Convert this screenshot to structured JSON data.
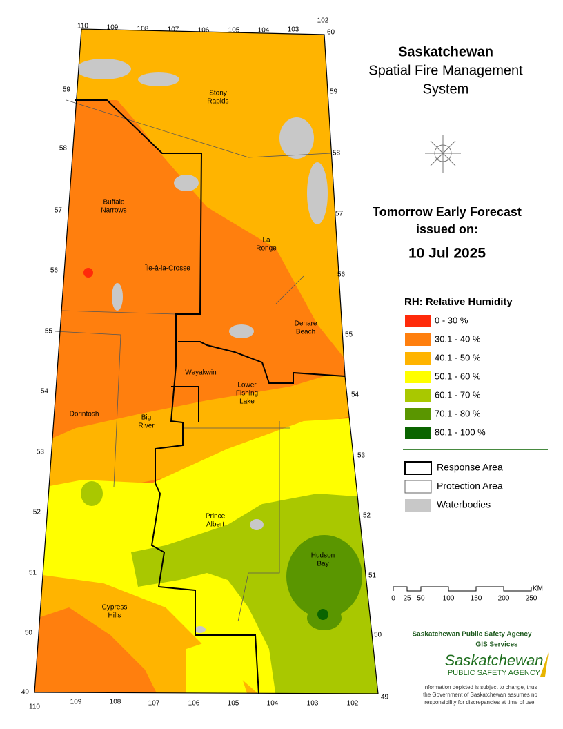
{
  "title": [
    "Saskatchewan",
    "Spatial Fire Management",
    "System"
  ],
  "forecast": [
    "Tomorrow Early Forecast",
    "issued on:",
    "10 Jul 2025"
  ],
  "legend": {
    "title": "RH: Relative Humidity",
    "items": [
      {
        "label": "0 - 30 %",
        "color": "#ff2a0a"
      },
      {
        "label": "30.1 - 40 %",
        "color": "#ff7f0e"
      },
      {
        "label": "40.1 - 50 %",
        "color": "#ffb400"
      },
      {
        "label": "50.1 - 60 %",
        "color": "#ffff00"
      },
      {
        "label": "60.1 - 70 %",
        "color": "#a9c800"
      },
      {
        "label": "70.1 - 80 %",
        "color": "#5a9600"
      },
      {
        "label": "80.1 - 100 %",
        "color": "#0a6400"
      }
    ]
  },
  "boundaries": [
    "Response Area",
    "Protection Area",
    "Waterbodies"
  ],
  "places": [
    [
      "Stony",
      "Rapids"
    ],
    [
      "Buffalo",
      "Narrows"
    ],
    [
      "La",
      "Ronge"
    ],
    [
      "Île-à-la-Crosse"
    ],
    [
      "Denare",
      "Beach"
    ],
    [
      "Weyakwin"
    ],
    [
      "Lower",
      "Fishing",
      "Lake"
    ],
    [
      "Dorintosh"
    ],
    [
      "Big",
      "River"
    ],
    [
      "Prince",
      "Albert"
    ],
    [
      "Hudson",
      "Bay"
    ],
    [
      "Cypress",
      "Hills"
    ]
  ],
  "lat_left": [
    "59",
    "58",
    "57",
    "56",
    "55",
    "54",
    "53",
    "52",
    "51",
    "50",
    "49"
  ],
  "lat_right": [
    "60",
    "59",
    "58",
    "57",
    "56",
    "55",
    "54",
    "53",
    "52",
    "51",
    "50",
    "49"
  ],
  "lon_top": [
    "110",
    "109",
    "108",
    "107",
    "106",
    "105",
    "104",
    "103",
    "102"
  ],
  "lon_bottom": [
    "110",
    "109",
    "108",
    "107",
    "106",
    "105",
    "104",
    "103",
    "102"
  ],
  "scale": [
    "0",
    "25",
    "50",
    "100",
    "150",
    "200",
    "250",
    "KM"
  ],
  "footer": {
    "agency": "Saskatchewan Public Safety Agency",
    "unit": "GIS  Services",
    "logo": [
      "Saskatchewan",
      "PUBLIC SAFETY AGENCY"
    ],
    "disclaimer": [
      "Information depicted is subject to change, thus",
      "the Government of Saskatchewan assumes no",
      "responsibility for discrepancies at time of use."
    ]
  }
}
